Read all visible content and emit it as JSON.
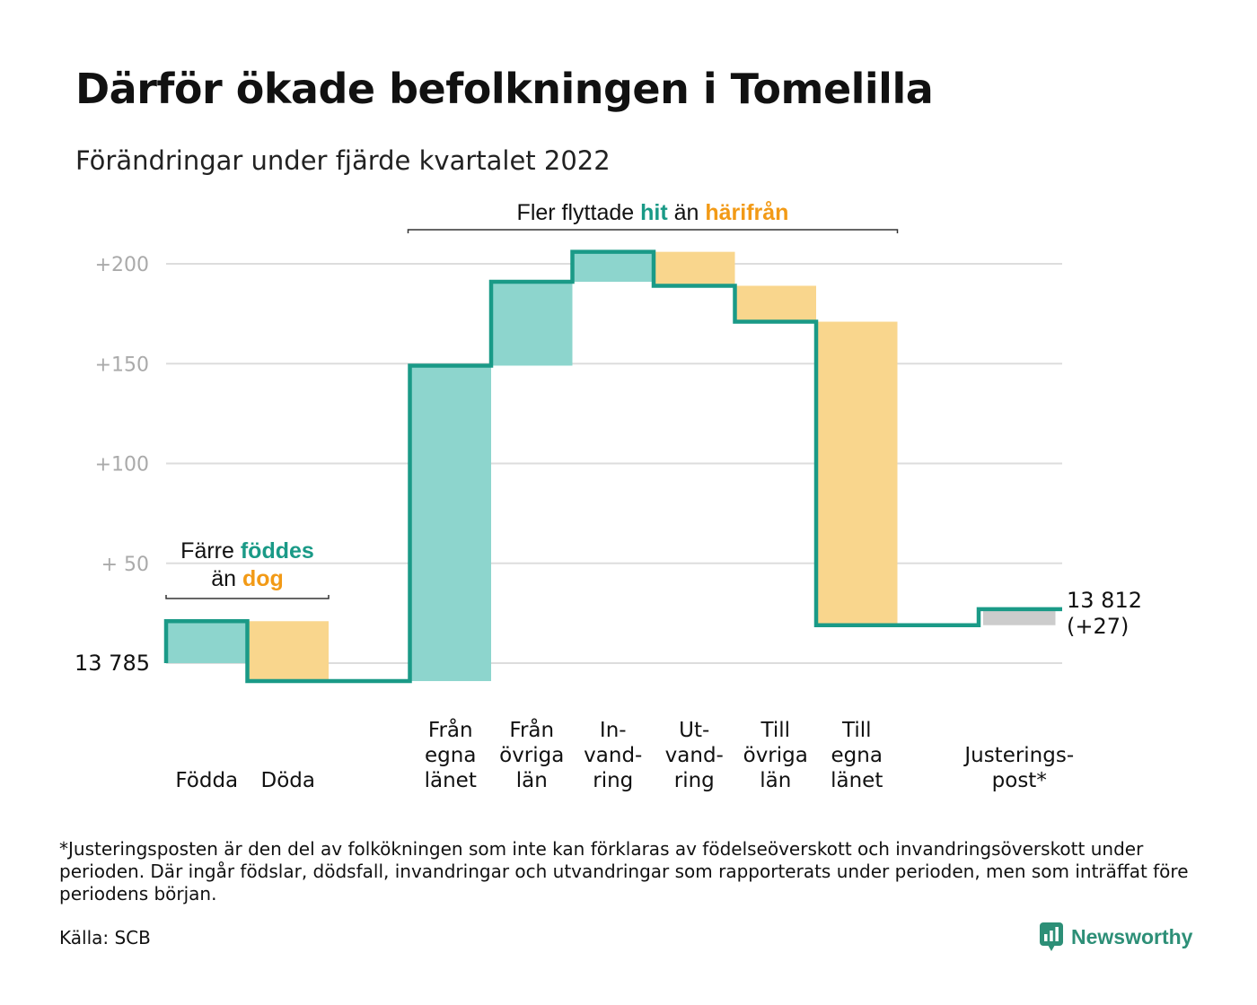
{
  "title": "Därför ökade befolkningen i Tomelilla",
  "subtitle": "Förändringar under fjärde kvartalet 2022",
  "colors": {
    "increase_fill": "#8dd5cd",
    "decrease_fill": "#f9d68d",
    "adjust_fill": "#cccccc",
    "step_line": "#1a9a87",
    "teal_text": "#1a9a87",
    "orange_text": "#f29a16",
    "grid": "#dddddd",
    "tick_text": "#aaaaaa"
  },
  "chart_data": {
    "type": "waterfall",
    "start_label": "13 785",
    "end_label": [
      "13 812",
      "(+27)"
    ],
    "ylim": [
      -10,
      215
    ],
    "yticks": [
      {
        "value": 50,
        "label": "+ 50"
      },
      {
        "value": 100,
        "label": "+100"
      },
      {
        "value": 150,
        "label": "+150"
      },
      {
        "value": 200,
        "label": "+200"
      }
    ],
    "steps": [
      {
        "label": [
          "Födda"
        ],
        "from": 0,
        "to": 21
      },
      {
        "label": [
          "Döda"
        ],
        "from": 21,
        "to": -9
      },
      {
        "label": [],
        "from": -9,
        "to": -9,
        "gap": true
      },
      {
        "label": [
          "Från",
          "egna",
          "länet"
        ],
        "from": -9,
        "to": 149
      },
      {
        "label": [
          "Från",
          "övriga",
          "län"
        ],
        "from": 149,
        "to": 191
      },
      {
        "label": [
          "In-",
          "vand-",
          "ring"
        ],
        "from": 191,
        "to": 206
      },
      {
        "label": [
          "Ut-",
          "vand-",
          "ring"
        ],
        "from": 206,
        "to": 189
      },
      {
        "label": [
          "Till",
          "övriga",
          "län"
        ],
        "from": 189,
        "to": 171
      },
      {
        "label": [
          "Till",
          "egna",
          "länet"
        ],
        "from": 171,
        "to": 19
      },
      {
        "label": [],
        "from": 19,
        "to": 19,
        "gap": true
      },
      {
        "label": [
          "Justerings-",
          "post*"
        ],
        "from": 19,
        "to": 27,
        "adjust": true
      }
    ],
    "annotations": {
      "births": {
        "line1_plain": "Färre ",
        "line1_bold": "föddes",
        "line2_plain": "än ",
        "line2_bold": "dog"
      },
      "moves": {
        "plain1": "Fler flyttade ",
        "bold1": "hit",
        "plain2": " än ",
        "bold2": "härifrån"
      }
    }
  },
  "footnote": "*Justeringsposten är den del av folkökningen som inte kan förklaras av födelseöverskott och invandringsöverskott under perioden. Där ingår födslar, dödsfall, invandringar och utvandringar som rapporterats under perioden, men som inträffat före periodens början.",
  "source": "Källa: SCB",
  "brand": {
    "name": "Newsworthy",
    "icon": "bar-chart-speech-bubble-icon"
  }
}
